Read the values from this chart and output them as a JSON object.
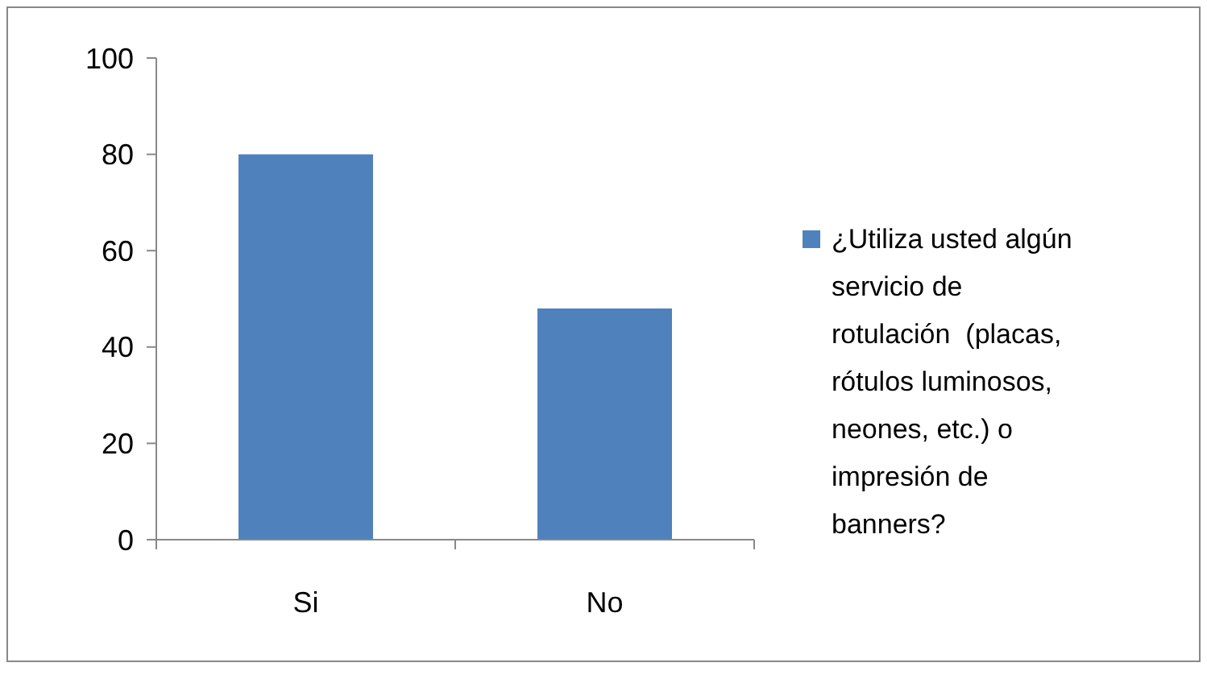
{
  "chart_data": {
    "type": "bar",
    "categories": [
      "Si",
      "No"
    ],
    "series": [
      {
        "name": "¿Utiliza usted algún servicio de rotulación  (placas, rótulos luminosos, neones, etc.) o impresión de banners?",
        "color": "#4f81bd",
        "values": [
          80,
          48
        ]
      }
    ],
    "ylim": [
      0,
      100
    ],
    "yticks": [
      0,
      20,
      40,
      60,
      80,
      100
    ],
    "grid": false,
    "legend": "right"
  }
}
